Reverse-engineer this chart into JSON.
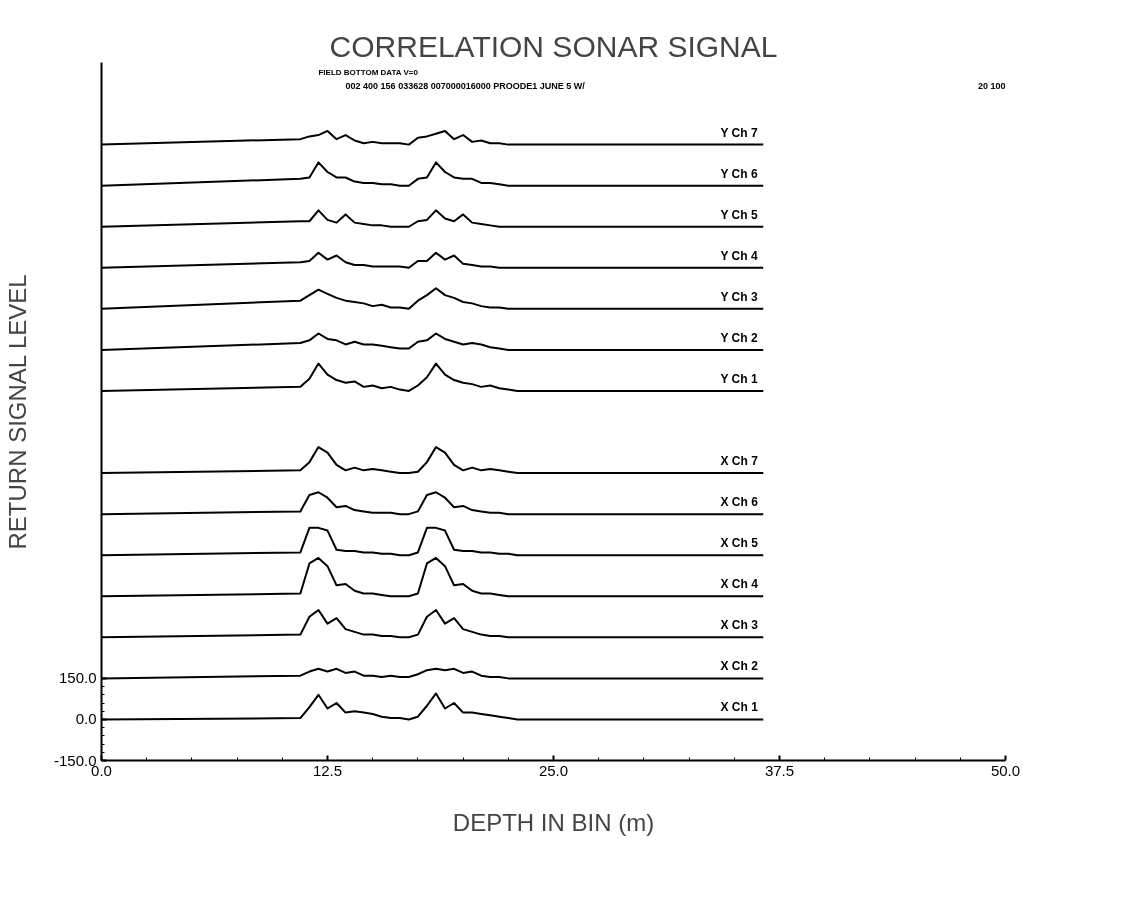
{
  "chart_data": {
    "type": "line",
    "title": "CORRELATION SONAR SIGNAL",
    "subtitle": "FIELD BOTTOM DATA V=0",
    "annotations": [
      "002 400 156 033628 007000016000 PROODE1 JUNE 5 W/",
      "20 100"
    ],
    "xlabel": "DEPTH IN BIN (m)",
    "ylabel": "RETURN SIGNAL LEVEL",
    "x": [
      0,
      11,
      11.5,
      12,
      12.5,
      13,
      13.5,
      14,
      14.5,
      15,
      15.5,
      16,
      16.5,
      17,
      17.5,
      18,
      18.5,
      19,
      19.5,
      20,
      20.5,
      21,
      21.5,
      22,
      22.5,
      23,
      36.6
    ],
    "xlim": [
      0,
      50
    ],
    "ylim": [
      -150,
      2400
    ],
    "xticks": [
      {
        "value": 0,
        "label": "0.0"
      },
      {
        "value": 12.5,
        "label": "12.5"
      },
      {
        "value": 25,
        "label": "25.0"
      },
      {
        "value": 37.5,
        "label": "37.5"
      },
      {
        "value": 50,
        "label": "50.0"
      }
    ],
    "yticks": [
      {
        "value": -150,
        "label": "-150.0"
      },
      {
        "value": 0,
        "label": "0.0"
      },
      {
        "value": 150,
        "label": "150.0"
      }
    ],
    "grid": false,
    "marker": "none",
    "line_style": "solid",
    "series": [
      {
        "name": "X Ch 1",
        "color": "#000000",
        "values": [
          0,
          5,
          45,
          90,
          40,
          60,
          25,
          30,
          25,
          20,
          10,
          5,
          5,
          0,
          10,
          50,
          95,
          40,
          60,
          25,
          25,
          20,
          15,
          10,
          5,
          0,
          0
        ]
      },
      {
        "name": "X Ch 2",
        "color": "#000000",
        "values": [
          150,
          160,
          175,
          185,
          175,
          185,
          170,
          175,
          160,
          160,
          155,
          160,
          155,
          155,
          165,
          180,
          185,
          180,
          185,
          170,
          175,
          160,
          155,
          155,
          150,
          150,
          150
        ]
      },
      {
        "name": "X Ch 3",
        "color": "#000000",
        "values": [
          300,
          310,
          375,
          400,
          350,
          370,
          330,
          320,
          310,
          310,
          305,
          305,
          300,
          300,
          310,
          375,
          400,
          350,
          370,
          330,
          320,
          310,
          305,
          305,
          300,
          300,
          300
        ]
      },
      {
        "name": "X Ch 4",
        "color": "#000000",
        "values": [
          450,
          460,
          570,
          590,
          560,
          490,
          495,
          470,
          460,
          460,
          455,
          450,
          450,
          450,
          460,
          570,
          590,
          560,
          490,
          495,
          470,
          460,
          460,
          455,
          450,
          450,
          450
        ]
      },
      {
        "name": "X Ch 5",
        "color": "#000000",
        "values": [
          600,
          610,
          700,
          700,
          690,
          620,
          615,
          615,
          610,
          610,
          605,
          605,
          600,
          600,
          610,
          700,
          700,
          690,
          620,
          615,
          615,
          610,
          610,
          605,
          605,
          600,
          600
        ]
      },
      {
        "name": "X Ch 6",
        "color": "#000000",
        "values": [
          750,
          760,
          820,
          830,
          810,
          775,
          780,
          765,
          760,
          755,
          755,
          755,
          750,
          750,
          760,
          820,
          830,
          810,
          775,
          780,
          765,
          760,
          755,
          755,
          750,
          750,
          750
        ]
      },
      {
        "name": "X Ch 7",
        "color": "#000000",
        "values": [
          900,
          910,
          940,
          995,
          975,
          930,
          910,
          920,
          910,
          915,
          910,
          905,
          900,
          900,
          905,
          940,
          995,
          975,
          930,
          910,
          920,
          910,
          915,
          910,
          905,
          900,
          900
        ]
      },
      {
        "name": "Y Ch 1",
        "color": "#000000",
        "values": [
          1200,
          1215,
          1245,
          1300,
          1260,
          1240,
          1230,
          1235,
          1215,
          1220,
          1210,
          1215,
          1205,
          1200,
          1220,
          1250,
          1300,
          1260,
          1240,
          1230,
          1225,
          1215,
          1220,
          1210,
          1205,
          1200,
          1200
        ]
      },
      {
        "name": "Y Ch 2",
        "color": "#000000",
        "values": [
          1350,
          1375,
          1385,
          1410,
          1390,
          1385,
          1370,
          1380,
          1370,
          1370,
          1365,
          1360,
          1355,
          1355,
          1380,
          1385,
          1410,
          1390,
          1380,
          1370,
          1375,
          1370,
          1360,
          1355,
          1350,
          1350,
          1350
        ]
      },
      {
        "name": "Y Ch 3",
        "color": "#000000",
        "values": [
          1500,
          1530,
          1550,
          1570,
          1555,
          1540,
          1530,
          1525,
          1520,
          1510,
          1515,
          1505,
          1505,
          1500,
          1530,
          1550,
          1575,
          1550,
          1540,
          1525,
          1520,
          1510,
          1505,
          1505,
          1500,
          1500,
          1500
        ]
      },
      {
        "name": "Y Ch 4",
        "color": "#000000",
        "values": [
          1650,
          1670,
          1675,
          1705,
          1680,
          1695,
          1670,
          1660,
          1660,
          1655,
          1655,
          1655,
          1655,
          1650,
          1675,
          1675,
          1705,
          1680,
          1695,
          1665,
          1660,
          1655,
          1655,
          1650,
          1650,
          1650,
          1650
        ]
      },
      {
        "name": "Y Ch 5",
        "color": "#000000",
        "values": [
          1800,
          1820,
          1820,
          1860,
          1825,
          1815,
          1845,
          1815,
          1810,
          1805,
          1805,
          1800,
          1800,
          1800,
          1820,
          1825,
          1860,
          1830,
          1820,
          1845,
          1815,
          1810,
          1805,
          1800,
          1800,
          1800,
          1800
        ]
      },
      {
        "name": "Y Ch 6",
        "color": "#000000",
        "values": [
          1950,
          1975,
          1980,
          2035,
          2000,
          1980,
          1980,
          1965,
          1960,
          1960,
          1955,
          1955,
          1950,
          1950,
          1975,
          1980,
          2035,
          2000,
          1980,
          1975,
          1975,
          1960,
          1960,
          1955,
          1950,
          1950,
          1950
        ]
      },
      {
        "name": "Y Ch 7",
        "color": "#000000",
        "values": [
          2100,
          2120,
          2130,
          2135,
          2150,
          2120,
          2135,
          2115,
          2105,
          2110,
          2105,
          2105,
          2105,
          2100,
          2125,
          2130,
          2140,
          2150,
          2120,
          2135,
          2110,
          2115,
          2105,
          2105,
          2100,
          2100,
          2100
        ]
      }
    ]
  }
}
